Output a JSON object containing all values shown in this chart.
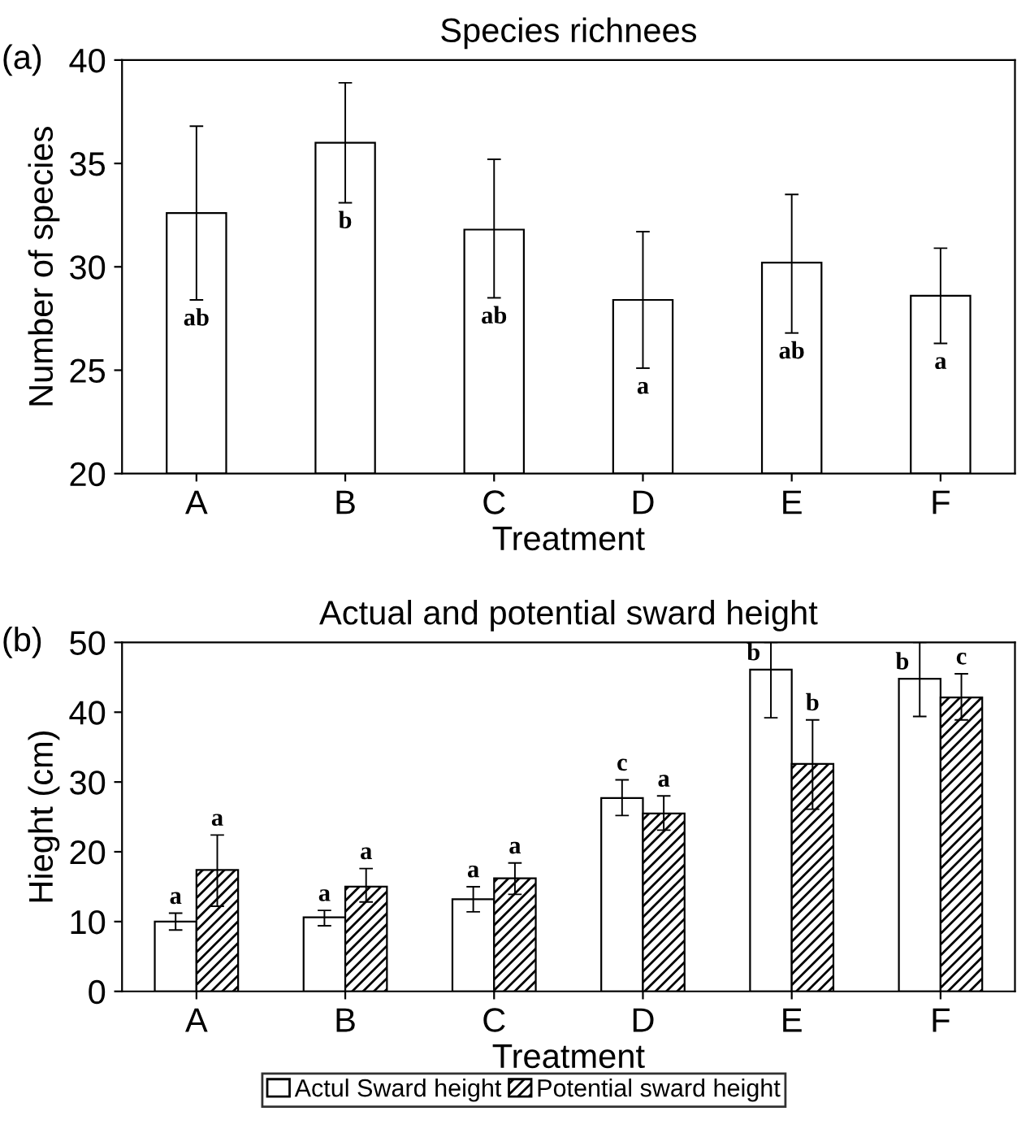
{
  "chart_data": [
    {
      "type": "bar",
      "title": "Species richnees",
      "xlabel": "Treatment",
      "ylabel": "Number of species",
      "categories": [
        "A",
        "B",
        "C",
        "D",
        "E",
        "F"
      ],
      "values": [
        32.6,
        36.0,
        31.8,
        28.4,
        30.2,
        28.6
      ],
      "errors": [
        [
          28.4,
          36.8
        ],
        [
          33.1,
          38.9
        ],
        [
          28.5,
          35.2
        ],
        [
          25.1,
          31.7
        ],
        [
          26.8,
          33.5
        ],
        [
          26.3,
          30.9
        ]
      ],
      "value_labels": [
        "ab",
        "b",
        "ab",
        "a",
        "ab",
        "a"
      ],
      "color": "#ffffff",
      "ylim": [
        20,
        40
      ],
      "yticks": [
        20,
        25,
        30,
        35,
        40
      ],
      "grid": false,
      "legend": false,
      "annotations": [
        "(a)"
      ]
    },
    {
      "type": "bar",
      "title": "Actual and potential sward height",
      "xlabel": "Treatment",
      "ylabel": "Hieght (cm)",
      "categories": [
        "A",
        "B",
        "C",
        "D",
        "E",
        "F"
      ],
      "series": [
        {
          "name": "Actul Sward height",
          "color": "#ffffff",
          "values": [
            10.0,
            10.6,
            13.2,
            27.7,
            46.1,
            44.8
          ],
          "errors": [
            [
              8.8,
              11.2
            ],
            [
              9.4,
              11.6
            ],
            [
              11.4,
              15.0
            ],
            [
              25.2,
              30.3
            ],
            [
              39.2,
              50
            ],
            [
              39.4,
              50
            ]
          ],
          "value_labels": [
            "a",
            "a",
            "a",
            "c",
            "b",
            "b"
          ]
        },
        {
          "name": "Potential sward height",
          "color": "#000000",
          "values": [
            17.4,
            15.0,
            16.2,
            25.5,
            32.6,
            42.1
          ],
          "errors": [
            [
              12.2,
              22.4
            ],
            [
              12.8,
              17.6
            ],
            [
              13.9,
              18.4
            ],
            [
              23.1,
              28.0
            ],
            [
              26.1,
              38.9
            ],
            [
              38.9,
              45.5
            ]
          ],
          "value_labels": [
            "a",
            "a",
            "a",
            "a",
            "b",
            "c"
          ]
        }
      ],
      "ylim": [
        0,
        50
      ],
      "yticks": [
        0,
        10,
        20,
        30,
        40,
        50
      ],
      "grid": false,
      "legend": "bottom",
      "annotations": [
        "(b)"
      ]
    }
  ]
}
